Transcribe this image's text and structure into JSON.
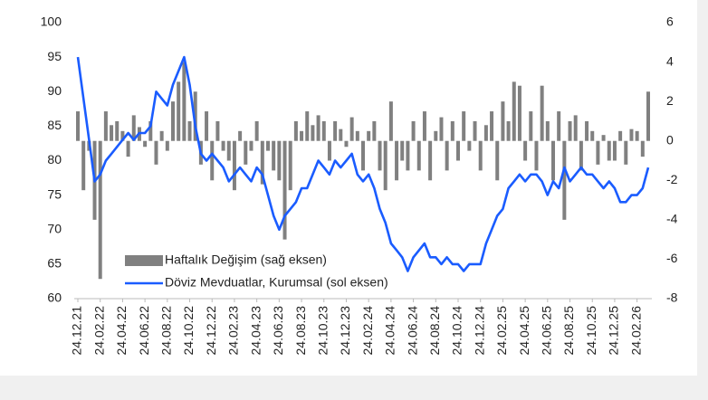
{
  "chart_data": {
    "type": "combo",
    "categories": [
      "24.12.21",
      null,
      null,
      null,
      "24.02.22",
      null,
      null,
      null,
      "24.04.22",
      null,
      null,
      null,
      "24.06.22",
      null,
      null,
      null,
      "24.08.22",
      null,
      null,
      null,
      "24.10.22",
      null,
      null,
      null,
      "24.12.22",
      null,
      null,
      null,
      "24.02.23",
      null,
      null,
      null,
      "24.04.23",
      null,
      null,
      null,
      "24.06.23",
      null,
      null,
      null,
      "24.08.23",
      null,
      null,
      null,
      "24.10.23",
      null,
      null,
      null,
      "24.12.23",
      null,
      null,
      null,
      "24.02.24",
      null,
      null,
      null,
      "24.04.24",
      null,
      null,
      null,
      "24.06.24",
      null,
      null,
      null,
      "24.08.24",
      null,
      null,
      null,
      "24.10.24",
      null,
      null,
      null,
      "24.12.24",
      null,
      null,
      null,
      "24.02.25",
      null,
      null,
      null,
      "24.04.25",
      null,
      null,
      null,
      "24.06.25",
      null,
      null,
      null,
      "24.08.25",
      null,
      null,
      null,
      "24.10.25",
      null,
      null,
      null,
      "24.12.25",
      null,
      null,
      null,
      "24.02.26",
      null,
      null
    ],
    "series": [
      {
        "name": "Haftalık Değişim (sağ eksen)",
        "type": "bar",
        "axis": "y2",
        "color": "#808080",
        "values": [
          1.5,
          -2.5,
          -0.5,
          -4,
          -7,
          1.5,
          0.8,
          1,
          0.5,
          -0.8,
          1.3,
          0.7,
          -0.3,
          1,
          -1.2,
          0.5,
          -0.5,
          2,
          3,
          4,
          1,
          2.5,
          -1.2,
          1.5,
          -2,
          1,
          -0.5,
          -1,
          -2.5,
          0.5,
          -1.2,
          -0.5,
          1,
          -2.2,
          -0.5,
          -1.5,
          -2,
          -5,
          -2.5,
          1,
          0.5,
          1.5,
          0.8,
          1.3,
          1,
          -1,
          1,
          0.6,
          -0.3,
          1.2,
          0.5,
          -1.5,
          0.5,
          1,
          -1.5,
          -2.5,
          2,
          -2,
          -1,
          -1.5,
          1,
          -1.5,
          1.5,
          -2,
          0.5,
          1.2,
          -1.5,
          1,
          -1,
          1.5,
          -0.5,
          1,
          -1.5,
          0.8,
          1.5,
          -2,
          2,
          1,
          3,
          2.8,
          -1,
          1.5,
          -1.5,
          2.8,
          1,
          -2,
          1.5,
          -4,
          1,
          1.3,
          -1.5,
          1,
          0.5,
          -1.2,
          0.3,
          -1,
          -1,
          0.5,
          -1.2,
          0.6,
          0.5,
          -0.8,
          2.5
        ]
      },
      {
        "name": "Döviz Mevduatlar, Kurumsal (sol eksen)",
        "type": "line",
        "axis": "y",
        "color": "#1a5cff",
        "values": [
          95,
          89,
          83,
          77,
          78,
          80,
          81,
          82,
          83,
          84,
          83,
          84,
          84,
          85,
          90,
          89,
          88,
          91,
          93,
          95,
          91,
          85,
          81,
          80,
          81,
          80,
          79,
          77,
          78,
          79,
          78,
          77,
          79,
          78,
          75,
          72,
          70,
          72,
          73,
          74,
          76,
          76,
          78,
          80,
          79,
          78,
          80,
          79,
          80,
          81,
          78,
          77,
          78,
          76,
          73,
          71,
          68,
          67,
          66,
          64,
          66,
          67,
          68,
          66,
          66,
          65,
          66,
          65,
          65,
          64,
          65,
          65,
          65,
          68,
          70,
          72,
          73,
          76,
          77,
          78,
          77,
          78,
          78,
          77,
          75,
          77,
          76,
          79,
          77,
          78,
          79,
          78,
          78,
          77,
          76,
          77,
          76,
          74,
          74,
          75,
          75,
          76,
          79
        ]
      }
    ],
    "ylim": [
      60,
      100
    ],
    "yticks": [
      60,
      65,
      70,
      75,
      80,
      85,
      90,
      95,
      100
    ],
    "y2lim": [
      -8,
      6
    ],
    "y2ticks": [
      -8,
      -6,
      -4,
      -2,
      0,
      2,
      4,
      6
    ],
    "legend": "lower left"
  }
}
